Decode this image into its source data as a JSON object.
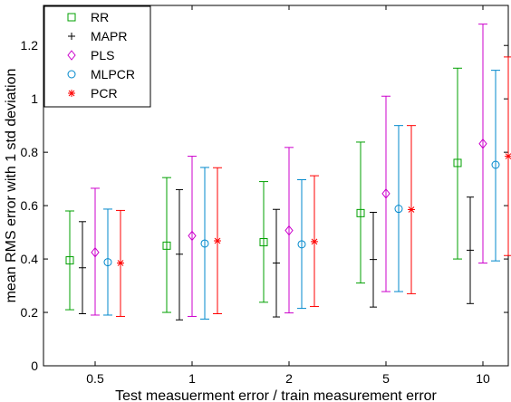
{
  "chart_data": {
    "type": "errorbar",
    "xlabel": "Test measuerment error / train measurement error",
    "ylabel": "mean RMS error with 1 std deviation",
    "categories": [
      "0.5",
      "1",
      "2",
      "5",
      "10"
    ],
    "ylim": [
      0,
      1.35
    ],
    "yticks": [
      0,
      0.2,
      0.4,
      0.6,
      0.8,
      1,
      1.2
    ],
    "ytick_labels": [
      "0",
      "0.2",
      "0.4",
      "0.6",
      "0.8",
      "1",
      "1.2"
    ],
    "legend_position": "top-left",
    "series": [
      {
        "name": "RR",
        "color": "#00a000",
        "marker": "square",
        "mean": [
          0.395,
          0.45,
          0.463,
          0.572,
          0.76
        ],
        "lower": [
          0.21,
          0.2,
          0.238,
          0.31,
          0.4
        ],
        "upper": [
          0.58,
          0.705,
          0.69,
          0.838,
          1.115
        ]
      },
      {
        "name": "MAPR",
        "color": "#000000",
        "marker": "plus",
        "mean": [
          0.367,
          0.418,
          0.385,
          0.398,
          0.433
        ],
        "lower": [
          0.195,
          0.172,
          0.183,
          0.22,
          0.233
        ],
        "upper": [
          0.54,
          0.66,
          0.586,
          0.575,
          0.632
        ]
      },
      {
        "name": "PLS",
        "color": "#cc00cc",
        "marker": "diamond",
        "mean": [
          0.425,
          0.487,
          0.507,
          0.645,
          0.832
        ],
        "lower": [
          0.19,
          0.185,
          0.198,
          0.278,
          0.385
        ],
        "upper": [
          0.665,
          0.785,
          0.818,
          1.01,
          1.28
        ]
      },
      {
        "name": "MLPCR",
        "color": "#0088cc",
        "marker": "circle",
        "mean": [
          0.388,
          0.458,
          0.455,
          0.588,
          0.753
        ],
        "lower": [
          0.19,
          0.175,
          0.215,
          0.278,
          0.393
        ],
        "upper": [
          0.587,
          0.743,
          0.697,
          0.9,
          1.107
        ]
      },
      {
        "name": "PCR",
        "color": "#ff0000",
        "marker": "star",
        "mean": [
          0.385,
          0.468,
          0.465,
          0.585,
          0.785
        ],
        "lower": [
          0.185,
          0.195,
          0.222,
          0.27,
          0.413
        ],
        "upper": [
          0.582,
          0.742,
          0.712,
          0.9,
          1.157
        ]
      }
    ]
  }
}
